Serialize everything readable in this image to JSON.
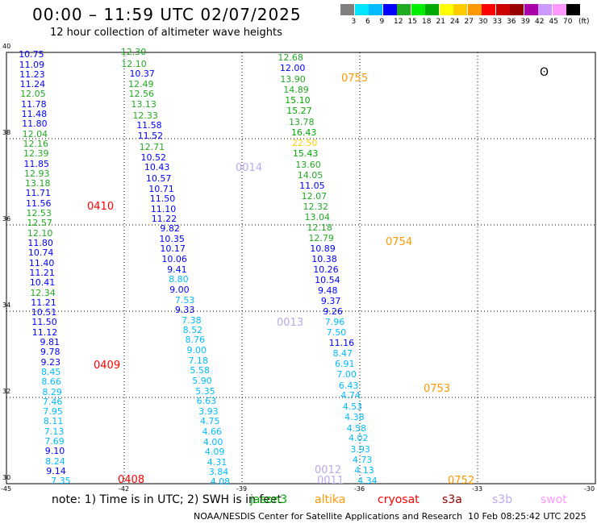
{
  "header": {
    "title": "00:00 – 11:59 UTC 02/07/2025",
    "subtitle": "12 hour collection of altimeter wave heights"
  },
  "colorbar": {
    "colors": [
      "#808080",
      "#00e5ff",
      "#00bbff",
      "#0000ff",
      "#22aa22",
      "#00ee00",
      "#00aa00",
      "#ffff00",
      "#ffcc00",
      "#ff9900",
      "#ff0000",
      "#cc0000",
      "#990000",
      "#aa00aa",
      "#cc99ff",
      "#ff99ff",
      "#000000"
    ],
    "labels": [
      "3",
      "6",
      "9",
      "12",
      "15",
      "18",
      "21",
      "24",
      "27",
      "30",
      "33",
      "36",
      "39",
      "42",
      "45",
      "70"
    ],
    "unit": "(ft)"
  },
  "map": {
    "lon_ticks": [
      "-45",
      "-42",
      "-39",
      "-36",
      "-33",
      "-30"
    ],
    "lat_ticks": [
      "40",
      "38",
      "36",
      "34",
      "32",
      "30"
    ]
  },
  "passes": [
    {
      "label": "0410",
      "color": "#ff0000"
    },
    {
      "label": "0409",
      "color": "#ff0000"
    },
    {
      "label": "0408",
      "color": "#ff0000"
    },
    {
      "label": "0014",
      "color": "#bbaaee"
    },
    {
      "label": "0013",
      "color": "#bbaaee"
    },
    {
      "label": "0012",
      "color": "#bbaaee"
    },
    {
      "label": "0011",
      "color": "#bbaaee"
    },
    {
      "label": "0755",
      "color": "#ff9900"
    },
    {
      "label": "0754",
      "color": "#ff9900"
    },
    {
      "label": "0753",
      "color": "#ff9900"
    },
    {
      "label": "0752",
      "color": "#ff9900"
    }
  ],
  "tracks": [
    {
      "name": "track-1",
      "points": [
        {
          "v": "10.75",
          "lon": -44.4,
          "lat": 39.94,
          "c": "#0000ff"
        },
        {
          "v": "11.09",
          "lon": -44.39,
          "lat": 39.71,
          "c": "#0000ff"
        },
        {
          "v": "11.23",
          "lon": -44.38,
          "lat": 39.48,
          "c": "#0000ff"
        },
        {
          "v": "11.24",
          "lon": -44.37,
          "lat": 39.25,
          "c": "#0000ff"
        },
        {
          "v": "12.05",
          "lon": -44.36,
          "lat": 39.02,
          "c": "#22aa22"
        },
        {
          "v": "11.78",
          "lon": -44.34,
          "lat": 38.79,
          "c": "#0000ff"
        },
        {
          "v": "11.48",
          "lon": -44.33,
          "lat": 38.56,
          "c": "#0000ff"
        },
        {
          "v": "11.80",
          "lon": -44.32,
          "lat": 38.33,
          "c": "#0000ff"
        },
        {
          "v": "12.04",
          "lon": -44.31,
          "lat": 38.1,
          "c": "#22aa22"
        },
        {
          "v": "12.16",
          "lon": -44.29,
          "lat": 37.87,
          "c": "#22aa22"
        },
        {
          "v": "12.39",
          "lon": -44.28,
          "lat": 37.64,
          "c": "#22aa22"
        },
        {
          "v": "11.85",
          "lon": -44.27,
          "lat": 37.41,
          "c": "#0000ff"
        },
        {
          "v": "12.93",
          "lon": -44.26,
          "lat": 37.18,
          "c": "#22aa22"
        },
        {
          "v": "13.18",
          "lon": -44.24,
          "lat": 36.95,
          "c": "#22aa22"
        },
        {
          "v": "11.71",
          "lon": -44.23,
          "lat": 36.72,
          "c": "#0000ff"
        },
        {
          "v": "11.56",
          "lon": -44.22,
          "lat": 36.49,
          "c": "#0000ff"
        },
        {
          "v": "12.53",
          "lon": -44.21,
          "lat": 36.26,
          "c": "#22aa22"
        },
        {
          "v": "12.57",
          "lon": -44.19,
          "lat": 36.03,
          "c": "#22aa22"
        },
        {
          "v": "12.10",
          "lon": -44.18,
          "lat": 35.8,
          "c": "#22aa22"
        },
        {
          "v": "11.80",
          "lon": -44.17,
          "lat": 35.57,
          "c": "#0000ff"
        },
        {
          "v": "10.74",
          "lon": -44.16,
          "lat": 35.34,
          "c": "#0000ff"
        },
        {
          "v": "11.40",
          "lon": -44.14,
          "lat": 35.11,
          "c": "#0000ff"
        },
        {
          "v": "11.21",
          "lon": -44.13,
          "lat": 34.88,
          "c": "#0000ff"
        },
        {
          "v": "10.41",
          "lon": -44.12,
          "lat": 34.65,
          "c": "#0000ff"
        },
        {
          "v": "12.34",
          "lon": -44.11,
          "lat": 34.42,
          "c": "#22aa22"
        },
        {
          "v": "11.21",
          "lon": -44.09,
          "lat": 34.19,
          "c": "#0000ff"
        },
        {
          "v": "10.51",
          "lon": -44.08,
          "lat": 33.96,
          "c": "#0000ff"
        },
        {
          "v": "11.50",
          "lon": -44.07,
          "lat": 33.73,
          "c": "#0000ff"
        },
        {
          "v": "11.12",
          "lon": -44.06,
          "lat": 33.5,
          "c": "#0000ff"
        },
        {
          "v": "9.81",
          "lon": -43.86,
          "lat": 33.27,
          "c": "#0000ff"
        },
        {
          "v": "9.78",
          "lon": -43.85,
          "lat": 33.04,
          "c": "#0000ff"
        },
        {
          "v": "9.23",
          "lon": -43.84,
          "lat": 32.81,
          "c": "#0000ff"
        },
        {
          "v": "8.45",
          "lon": -43.83,
          "lat": 32.58,
          "c": "#00bbff"
        },
        {
          "v": "8.66",
          "lon": -43.82,
          "lat": 32.35,
          "c": "#00bbff"
        },
        {
          "v": "8.29",
          "lon": -43.8,
          "lat": 32.12,
          "c": "#00bbff"
        },
        {
          "v": "7.46",
          "lon": -43.79,
          "lat": 31.89,
          "c": "#00bbff"
        },
        {
          "v": "7.95",
          "lon": -43.78,
          "lat": 31.66,
          "c": "#00bbff"
        },
        {
          "v": "8.11",
          "lon": -43.77,
          "lat": 31.43,
          "c": "#00bbff"
        },
        {
          "v": "7.13",
          "lon": -43.75,
          "lat": 31.2,
          "c": "#00bbff"
        },
        {
          "v": "7.69",
          "lon": -43.74,
          "lat": 30.97,
          "c": "#00bbff"
        },
        {
          "v": "9.10",
          "lon": -43.73,
          "lat": 30.74,
          "c": "#0000ff"
        },
        {
          "v": "8.24",
          "lon": -43.72,
          "lat": 30.51,
          "c": "#00bbff"
        },
        {
          "v": "9.14",
          "lon": -43.7,
          "lat": 30.28,
          "c": "#0000ff"
        },
        {
          "v": "7.35",
          "lon": -43.58,
          "lat": 30.05,
          "c": "#00bbff"
        }
      ]
    },
    {
      "name": "track-2",
      "points": [
        {
          "v": "12.30",
          "lon": -41.8,
          "lat": 40.0,
          "c": "#22aa22"
        },
        {
          "v": "12.10",
          "lon": -41.79,
          "lat": 39.72,
          "c": "#22aa22"
        },
        {
          "v": "10.37",
          "lon": -41.58,
          "lat": 39.49,
          "c": "#0000ff"
        },
        {
          "v": "12.49",
          "lon": -41.61,
          "lat": 39.25,
          "c": "#22aa22"
        },
        {
          "v": "12.56",
          "lon": -41.6,
          "lat": 39.02,
          "c": "#22aa22"
        },
        {
          "v": "13.13",
          "lon": -41.54,
          "lat": 38.78,
          "c": "#22aa22"
        },
        {
          "v": "12.33",
          "lon": -41.5,
          "lat": 38.53,
          "c": "#22aa22"
        },
        {
          "v": "11.58",
          "lon": -41.4,
          "lat": 38.29,
          "c": "#0000ff"
        },
        {
          "v": "11.52",
          "lon": -41.37,
          "lat": 38.05,
          "c": "#0000ff"
        },
        {
          "v": "12.71",
          "lon": -41.33,
          "lat": 37.8,
          "c": "#22aa22"
        },
        {
          "v": "10.52",
          "lon": -41.29,
          "lat": 37.56,
          "c": "#0000ff"
        },
        {
          "v": "10.43",
          "lon": -41.2,
          "lat": 37.32,
          "c": "#0000ff"
        },
        {
          "v": "10.57",
          "lon": -41.16,
          "lat": 37.07,
          "c": "#0000ff"
        },
        {
          "v": "10.71",
          "lon": -41.09,
          "lat": 36.83,
          "c": "#0000ff"
        },
        {
          "v": "11.50",
          "lon": -41.06,
          "lat": 36.6,
          "c": "#0000ff"
        },
        {
          "v": "11.10",
          "lon": -41.04,
          "lat": 36.35,
          "c": "#0000ff"
        },
        {
          "v": "11.22",
          "lon": -41.02,
          "lat": 36.13,
          "c": "#0000ff"
        },
        {
          "v": "9.82",
          "lon": -40.8,
          "lat": 35.9,
          "c": "#0000ff"
        },
        {
          "v": "10.35",
          "lon": -40.82,
          "lat": 35.66,
          "c": "#0000ff"
        },
        {
          "v": "10.17",
          "lon": -40.8,
          "lat": 35.43,
          "c": "#0000ff"
        },
        {
          "v": "10.06",
          "lon": -40.76,
          "lat": 35.19,
          "c": "#0000ff"
        },
        {
          "v": "9.41",
          "lon": -40.62,
          "lat": 34.95,
          "c": "#0000ff"
        },
        {
          "v": "8.80",
          "lon": -40.58,
          "lat": 34.72,
          "c": "#00bbff"
        },
        {
          "v": "9.00",
          "lon": -40.56,
          "lat": 34.49,
          "c": "#0000ff"
        },
        {
          "v": "7.53",
          "lon": -40.42,
          "lat": 34.25,
          "c": "#00bbff"
        },
        {
          "v": "9.33",
          "lon": -40.42,
          "lat": 34.02,
          "c": "#0000ff"
        },
        {
          "v": "7.38",
          "lon": -40.25,
          "lat": 33.78,
          "c": "#00bbff"
        },
        {
          "v": "8.52",
          "lon": -40.22,
          "lat": 33.55,
          "c": "#00bbff"
        },
        {
          "v": "8.76",
          "lon": -40.16,
          "lat": 33.32,
          "c": "#00bbff"
        },
        {
          "v": "9.00",
          "lon": -40.12,
          "lat": 33.08,
          "c": "#00bbff"
        },
        {
          "v": "7.18",
          "lon": -40.08,
          "lat": 32.84,
          "c": "#00bbff"
        },
        {
          "v": "5.58",
          "lon": -40.04,
          "lat": 32.61,
          "c": "#00bbff"
        },
        {
          "v": "5.90",
          "lon": -39.98,
          "lat": 32.38,
          "c": "#00bbff"
        },
        {
          "v": "5.35",
          "lon": -39.9,
          "lat": 32.14,
          "c": "#00bbff"
        },
        {
          "v": "6.63",
          "lon": -39.87,
          "lat": 31.91,
          "c": "#00bbff"
        },
        {
          "v": "3.93",
          "lon": -39.82,
          "lat": 31.67,
          "c": "#00bbff"
        },
        {
          "v": "4.75",
          "lon": -39.78,
          "lat": 31.43,
          "c": "#00bbff"
        },
        {
          "v": "4.66",
          "lon": -39.73,
          "lat": 31.19,
          "c": "#00bbff"
        },
        {
          "v": "4.00",
          "lon": -39.7,
          "lat": 30.95,
          "c": "#00bbff"
        },
        {
          "v": "4.09",
          "lon": -39.66,
          "lat": 30.72,
          "c": "#00bbff"
        },
        {
          "v": "4.31",
          "lon": -39.6,
          "lat": 30.49,
          "c": "#00bbff"
        },
        {
          "v": "3.84",
          "lon": -39.56,
          "lat": 30.26,
          "c": "#00bbff"
        },
        {
          "v": "4.08",
          "lon": -39.52,
          "lat": 30.03,
          "c": "#00bbff"
        }
      ]
    },
    {
      "name": "track-3",
      "points": [
        {
          "v": "12.68",
          "lon": -37.8,
          "lat": 39.86,
          "c": "#22aa22"
        },
        {
          "v": "12.00",
          "lon": -37.75,
          "lat": 39.62,
          "c": "#0000ff"
        },
        {
          "v": "13.90",
          "lon": -37.74,
          "lat": 39.36,
          "c": "#22aa22"
        },
        {
          "v": "14.89",
          "lon": -37.66,
          "lat": 39.12,
          "c": "#22aa22"
        },
        {
          "v": "15.10",
          "lon": -37.62,
          "lat": 38.87,
          "c": "#00aa00"
        },
        {
          "v": "15.27",
          "lon": -37.58,
          "lat": 38.63,
          "c": "#00aa00"
        },
        {
          "v": "13.78",
          "lon": -37.52,
          "lat": 38.38,
          "c": "#22aa22"
        },
        {
          "v": "16.43",
          "lon": -37.46,
          "lat": 38.13,
          "c": "#00aa00"
        },
        {
          "v": "22.50",
          "lon": -37.44,
          "lat": 37.88,
          "c": "#ffcc00"
        },
        {
          "v": "15.43",
          "lon": -37.42,
          "lat": 37.64,
          "c": "#00aa00"
        },
        {
          "v": "13.60",
          "lon": -37.35,
          "lat": 37.39,
          "c": "#22aa22"
        },
        {
          "v": "14.05",
          "lon": -37.3,
          "lat": 37.14,
          "c": "#22aa22"
        },
        {
          "v": "11.05",
          "lon": -37.25,
          "lat": 36.9,
          "c": "#0000ff"
        },
        {
          "v": "12.07",
          "lon": -37.2,
          "lat": 36.65,
          "c": "#22aa22"
        },
        {
          "v": "12.32",
          "lon": -37.16,
          "lat": 36.41,
          "c": "#22aa22"
        },
        {
          "v": "13.04",
          "lon": -37.12,
          "lat": 36.17,
          "c": "#22aa22"
        },
        {
          "v": "12.18",
          "lon": -37.06,
          "lat": 35.93,
          "c": "#22aa22"
        },
        {
          "v": "12.79",
          "lon": -37.02,
          "lat": 35.68,
          "c": "#22aa22"
        },
        {
          "v": "10.89",
          "lon": -36.98,
          "lat": 35.44,
          "c": "#0000ff"
        },
        {
          "v": "10.38",
          "lon": -36.94,
          "lat": 35.2,
          "c": "#0000ff"
        },
        {
          "v": "10.26",
          "lon": -36.9,
          "lat": 34.95,
          "c": "#0000ff"
        },
        {
          "v": "10.54",
          "lon": -36.86,
          "lat": 34.71,
          "c": "#0000ff"
        },
        {
          "v": "9.48",
          "lon": -36.78,
          "lat": 34.47,
          "c": "#0000ff"
        },
        {
          "v": "9.37",
          "lon": -36.7,
          "lat": 34.22,
          "c": "#0000ff"
        },
        {
          "v": "9.26",
          "lon": -36.65,
          "lat": 33.98,
          "c": "#0000ff"
        },
        {
          "v": "7.96",
          "lon": -36.6,
          "lat": 33.74,
          "c": "#00bbff"
        },
        {
          "v": "7.50",
          "lon": -36.56,
          "lat": 33.5,
          "c": "#00bbff"
        },
        {
          "v": "11.16",
          "lon": -36.5,
          "lat": 33.25,
          "c": "#0000ff"
        },
        {
          "v": "8.47",
          "lon": -36.4,
          "lat": 33.01,
          "c": "#00bbff"
        },
        {
          "v": "6.91",
          "lon": -36.35,
          "lat": 32.77,
          "c": "#00bbff"
        },
        {
          "v": "7.00",
          "lon": -36.3,
          "lat": 32.52,
          "c": "#00bbff"
        },
        {
          "v": "6.43",
          "lon": -36.25,
          "lat": 32.27,
          "c": "#00bbff"
        },
        {
          "v": "4.74",
          "lon": -36.2,
          "lat": 32.03,
          "c": "#00bbff"
        },
        {
          "v": "4.53",
          "lon": -36.15,
          "lat": 31.78,
          "c": "#00bbff"
        },
        {
          "v": "4.38",
          "lon": -36.1,
          "lat": 31.53,
          "c": "#00bbff"
        },
        {
          "v": "4.58",
          "lon": -36.05,
          "lat": 31.28,
          "c": "#00bbff"
        },
        {
          "v": "4.02",
          "lon": -36.0,
          "lat": 31.04,
          "c": "#00bbff"
        },
        {
          "v": "3.93",
          "lon": -35.95,
          "lat": 30.79,
          "c": "#00bbff"
        },
        {
          "v": "4.73",
          "lon": -35.9,
          "lat": 30.54,
          "c": "#00bbff"
        },
        {
          "v": "4.13",
          "lon": -35.85,
          "lat": 30.3,
          "c": "#00bbff"
        },
        {
          "v": "4.34",
          "lon": -35.77,
          "lat": 30.05,
          "c": "#00bbff"
        }
      ]
    }
  ],
  "footer": {
    "note": "note: 1) Time is in UTC; 2) SWH is in feet",
    "satellites": [
      {
        "name": "jason3",
        "color": "#00aa00"
      },
      {
        "name": "altika",
        "color": "#ff9900"
      },
      {
        "name": "cryosat",
        "color": "#ff0000"
      },
      {
        "name": "s3a",
        "color": "#990000"
      },
      {
        "name": "s3b",
        "color": "#bbaaee"
      },
      {
        "name": "swot",
        "color": "#ff99ff"
      }
    ],
    "credit": "NOAA/NESDIS Center for Satellite Applications and Research",
    "timestamp": "10 Feb 08:25:42 UTC 2025"
  }
}
